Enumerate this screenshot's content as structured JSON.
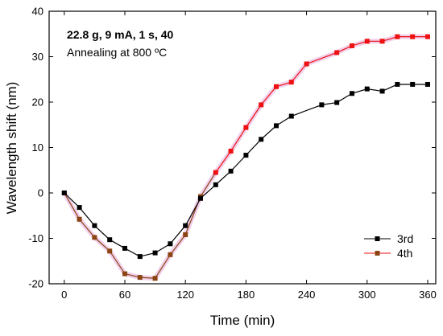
{
  "chart_data": {
    "type": "line",
    "xlabel": "Time (min)",
    "ylabel": "Wavelength shift (nm)",
    "xlim": [
      -15,
      368
    ],
    "ylim": [
      -20,
      40
    ],
    "xticks": [
      0,
      60,
      120,
      180,
      240,
      300,
      360
    ],
    "yticks": [
      -20,
      -10,
      0,
      10,
      20,
      30,
      40
    ],
    "annotations": [
      "22.8 g, 9 mA, 1 s, 40",
      "Annealing at 800 ºC"
    ],
    "legend_position": "lower-right",
    "series": [
      {
        "name": "3rd",
        "color": "#000000",
        "marker_color": "#000000",
        "halo": "",
        "points": [
          [
            0,
            0
          ],
          [
            15,
            -3.2
          ],
          [
            30,
            -7.2
          ],
          [
            45,
            -10.3
          ],
          [
            60,
            -12.2
          ],
          [
            75,
            -14
          ],
          [
            90,
            -13.2
          ],
          [
            105,
            -11.2
          ],
          [
            120,
            -7.2
          ],
          [
            135,
            -1.2
          ],
          [
            150,
            1.8
          ],
          [
            165,
            4.8
          ],
          [
            180,
            8.3
          ],
          [
            195,
            11.8
          ],
          [
            210,
            14.8
          ],
          [
            225,
            16.9
          ],
          [
            255,
            19.4
          ],
          [
            270,
            19.9
          ],
          [
            285,
            21.9
          ],
          [
            300,
            22.9
          ],
          [
            315,
            22.4
          ],
          [
            330,
            23.9
          ],
          [
            345,
            23.9
          ],
          [
            360,
            23.9
          ]
        ]
      },
      {
        "name": "4th",
        "color": "#ee1111",
        "marker_color": "#ee1111",
        "halo": "#e8b0e0",
        "points": [
          [
            0,
            0
          ],
          [
            15,
            -5.8
          ],
          [
            30,
            -9.8
          ],
          [
            45,
            -12.8
          ],
          [
            60,
            -17.8
          ],
          [
            75,
            -18.6
          ],
          [
            90,
            -18.8
          ],
          [
            105,
            -13.6
          ],
          [
            120,
            -9.2
          ],
          [
            135,
            -0.8
          ],
          [
            150,
            4.5
          ],
          [
            165,
            9.2
          ],
          [
            180,
            14.4
          ],
          [
            195,
            19.4
          ],
          [
            210,
            23.4
          ],
          [
            225,
            24.4
          ],
          [
            240,
            28.4
          ],
          [
            270,
            30.9
          ],
          [
            285,
            32.4
          ],
          [
            300,
            33.4
          ],
          [
            315,
            33.4
          ],
          [
            330,
            34.4
          ],
          [
            345,
            34.4
          ],
          [
            360,
            34.4
          ]
        ],
        "segment_colors": [
          "#8b4513",
          "#8b4513",
          "#8b4513",
          "#8b4513",
          "#8b4513",
          "#8b4513",
          "#8b4513",
          "#8b4513",
          "#8b4513",
          "#8b4513",
          "#ee1111",
          "#ee1111",
          "#ee1111",
          "#ee1111",
          "#ee1111",
          "#ee1111",
          "#ee1111",
          "#ee1111",
          "#ee1111",
          "#ee1111",
          "#ee1111",
          "#ee1111",
          "#ee1111"
        ],
        "point_colors": [
          "#8b4513",
          "#8b4513",
          "#8b4513",
          "#8b4513",
          "#8b4513",
          "#8b4513",
          "#8b4513",
          "#8b4513",
          "#8b4513",
          "#8b4513",
          "#ee1111",
          "#ee1111",
          "#ee1111",
          "#ee1111",
          "#ee1111",
          "#ee1111",
          "#ee1111",
          "#ee1111",
          "#ee1111",
          "#ee1111",
          "#ee1111",
          "#ee1111",
          "#ee1111",
          "#ee1111"
        ]
      }
    ],
    "legend": [
      {
        "label": "3rd",
        "color": "#000000"
      },
      {
        "label": "4th",
        "color": "#8b4513",
        "line_color": "#ee1111"
      }
    ]
  }
}
